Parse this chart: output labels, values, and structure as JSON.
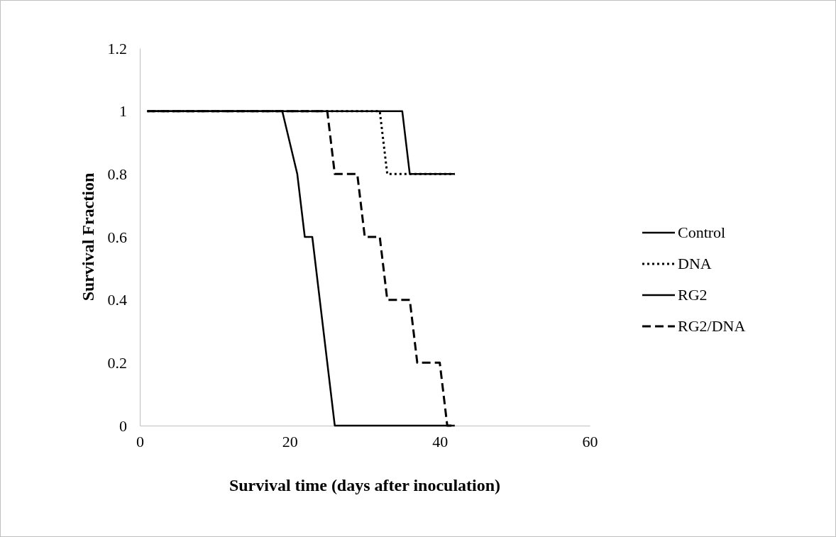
{
  "chart_data": {
    "type": "line",
    "xlabel": "Survival time (days after inoculation)",
    "ylabel": "Survival Fraction",
    "xlim": [
      0,
      60
    ],
    "xticks": [
      0,
      20,
      40,
      60
    ],
    "ylim": [
      0,
      1.2
    ],
    "yticks": [
      0,
      0.2,
      0.4,
      0.6,
      0.8,
      1,
      1.2
    ],
    "grid": false,
    "legend": "right",
    "marker": "none",
    "series": [
      {
        "name": "Control",
        "color": "#000000",
        "line_style": "solid",
        "x": [
          1,
          35,
          36,
          42
        ],
        "values": [
          1,
          1,
          0.8,
          0.8
        ]
      },
      {
        "name": "DNA",
        "color": "#000000",
        "line_style": "dotted",
        "x": [
          1,
          32,
          33,
          42
        ],
        "values": [
          1,
          1,
          0.8,
          0.8
        ]
      },
      {
        "name": "RG2",
        "color": "#000000",
        "line_style": "solid",
        "x": [
          1,
          19,
          21,
          22,
          23,
          26,
          42
        ],
        "values": [
          1,
          1,
          0.8,
          0.6,
          0.6,
          0,
          0
        ]
      },
      {
        "name": "RG2/DNA",
        "color": "#000000",
        "line_style": "dashed",
        "x": [
          1,
          25,
          26,
          29,
          30,
          32,
          33,
          36,
          37,
          40,
          41,
          42
        ],
        "values": [
          1,
          1,
          0.8,
          0.8,
          0.6,
          0.6,
          0.4,
          0.4,
          0.2,
          0.2,
          0,
          0
        ]
      }
    ]
  }
}
